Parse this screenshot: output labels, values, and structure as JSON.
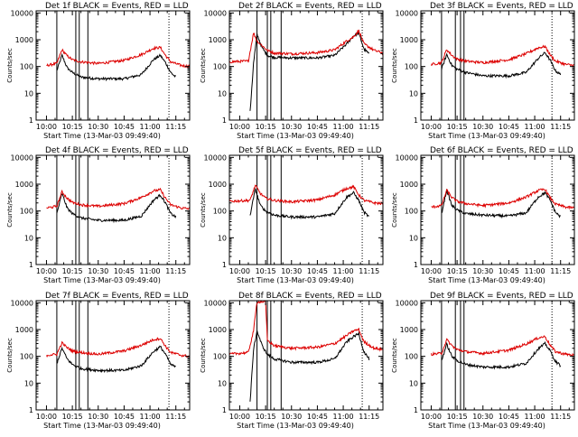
{
  "colors": {
    "events": "#000000",
    "lld": "#dd0000",
    "axis": "#000000"
  },
  "shared": {
    "ylabel": "Counts/sec",
    "xlabel": "Start Time (13-Mar-03 09:49:40)",
    "x_ticks": [
      "10:00",
      "10:15",
      "10:30",
      "10:45",
      "11:00",
      "11:15"
    ],
    "y_ticks": [
      "1",
      "10",
      "100",
      "1000",
      "10000"
    ],
    "xlim_minutes": [
      -6,
      83
    ],
    "ylim": [
      1,
      12000
    ],
    "yscale": "log"
  },
  "chart_data": [
    {
      "type": "line",
      "title": "Det 1f BLACK = Events, RED = LLD",
      "series": [
        {
          "x": [
            6,
            9,
            12,
            15,
            20,
            30,
            45,
            55,
            62,
            66,
            69,
            72,
            75
          ],
          "values": [
            70,
            260,
            90,
            60,
            40,
            35,
            35,
            50,
            180,
            260,
            140,
            60,
            40
          ]
        },
        {
          "x": [
            0,
            6,
            9,
            12,
            15,
            20,
            30,
            45,
            55,
            62,
            66,
            69,
            72,
            78,
            83
          ],
          "values": [
            110,
            130,
            420,
            250,
            180,
            150,
            130,
            170,
            280,
            480,
            520,
            260,
            150,
            110,
            100
          ]
        }
      ],
      "markers_solid": [
        6,
        17,
        19,
        24
      ],
      "markers_dotted": [
        71
      ]
    },
    {
      "type": "line",
      "title": "Det 2f BLACK = Events, RED = LLD",
      "series": [
        {
          "x": [
            6,
            8,
            10,
            13,
            16,
            20,
            30,
            45,
            55,
            62,
            66,
            69,
            72,
            75
          ],
          "values": [
            2,
            130,
            1600,
            500,
            260,
            220,
            210,
            210,
            260,
            700,
            1400,
            1800,
            450,
            300
          ]
        },
        {
          "x": [
            -6,
            5,
            8,
            10,
            13,
            16,
            20,
            30,
            45,
            55,
            62,
            66,
            69,
            72,
            78,
            83
          ],
          "values": [
            150,
            160,
            1800,
            900,
            600,
            400,
            320,
            300,
            330,
            420,
            900,
            1300,
            2200,
            700,
            400,
            320
          ]
        }
      ],
      "markers_solid": [
        10,
        16,
        18,
        24
      ],
      "markers_dotted": [
        71
      ]
    },
    {
      "type": "line",
      "title": "Det 3f BLACK = Events, RED = LLD",
      "series": [
        {
          "x": [
            6,
            9,
            12,
            15,
            20,
            30,
            45,
            55,
            62,
            66,
            69,
            72,
            75
          ],
          "values": [
            80,
            280,
            110,
            80,
            60,
            45,
            45,
            60,
            200,
            330,
            170,
            70,
            50
          ]
        },
        {
          "x": [
            0,
            6,
            9,
            12,
            15,
            20,
            30,
            45,
            55,
            62,
            66,
            69,
            72,
            78,
            83
          ],
          "values": [
            120,
            140,
            430,
            260,
            190,
            160,
            140,
            180,
            300,
            500,
            560,
            270,
            160,
            120,
            110
          ]
        }
      ],
      "markers_solid": [
        6,
        14,
        17,
        19
      ],
      "markers_dotted": [
        70
      ]
    },
    {
      "type": "line",
      "title": "Det 4f BLACK = Events, RED = LLD",
      "series": [
        {
          "x": [
            6,
            9,
            12,
            15,
            20,
            30,
            45,
            55,
            62,
            66,
            69,
            72,
            75
          ],
          "values": [
            80,
            450,
            130,
            80,
            55,
            45,
            45,
            65,
            250,
            400,
            200,
            80,
            60
          ]
        },
        {
          "x": [
            0,
            6,
            9,
            12,
            15,
            20,
            30,
            45,
            55,
            62,
            66,
            69,
            72,
            78,
            83
          ],
          "values": [
            130,
            150,
            520,
            300,
            210,
            170,
            150,
            190,
            320,
            560,
            620,
            300,
            170,
            130,
            120
          ]
        }
      ],
      "markers_solid": [
        6,
        17,
        19,
        24
      ],
      "markers_dotted": [
        71
      ]
    },
    {
      "type": "line",
      "title": "Det 5f BLACK = Events, RED = LLD",
      "series": [
        {
          "x": [
            6,
            9,
            12,
            15,
            20,
            30,
            45,
            55,
            62,
            66,
            69,
            72,
            75
          ],
          "values": [
            70,
            650,
            160,
            100,
            70,
            60,
            60,
            80,
            330,
            480,
            250,
            90,
            60
          ]
        },
        {
          "x": [
            -6,
            6,
            9,
            12,
            15,
            20,
            30,
            45,
            55,
            62,
            66,
            69,
            72,
            78,
            83
          ],
          "values": [
            230,
            250,
            900,
            450,
            300,
            250,
            220,
            260,
            400,
            700,
            800,
            400,
            250,
            200,
            190
          ]
        }
      ],
      "markers_solid": [
        10,
        16,
        18,
        24
      ],
      "markers_dotted": [
        71
      ]
    },
    {
      "type": "line",
      "title": "Det 6f BLACK = Events, RED = LLD",
      "series": [
        {
          "x": [
            6,
            9,
            12,
            15,
            20,
            30,
            45,
            55,
            62,
            66,
            69,
            72,
            75
          ],
          "values": [
            80,
            600,
            160,
            110,
            80,
            70,
            65,
            85,
            330,
            480,
            250,
            90,
            60
          ]
        },
        {
          "x": [
            0,
            6,
            9,
            12,
            15,
            20,
            30,
            45,
            55,
            62,
            66,
            69,
            72,
            78,
            83
          ],
          "values": [
            140,
            160,
            600,
            320,
            230,
            190,
            160,
            200,
            330,
            580,
            650,
            310,
            180,
            140,
            130
          ]
        }
      ],
      "markers_solid": [
        6,
        14,
        17,
        19
      ],
      "markers_dotted": [
        70
      ]
    },
    {
      "type": "line",
      "title": "Det 7f BLACK = Events, RED = LLD",
      "series": [
        {
          "x": [
            6,
            9,
            12,
            15,
            20,
            30,
            45,
            55,
            62,
            66,
            69,
            72,
            75
          ],
          "values": [
            55,
            200,
            80,
            50,
            35,
            30,
            30,
            45,
            150,
            230,
            120,
            50,
            40
          ]
        },
        {
          "x": [
            0,
            6,
            9,
            12,
            15,
            20,
            30,
            45,
            55,
            62,
            66,
            69,
            72,
            78,
            83
          ],
          "values": [
            110,
            120,
            320,
            210,
            160,
            140,
            120,
            160,
            260,
            420,
            470,
            240,
            140,
            110,
            100
          ]
        }
      ],
      "markers_solid": [
        6,
        17,
        19,
        24
      ],
      "markers_dotted": [
        71
      ]
    },
    {
      "type": "line",
      "title": "Det 8f BLACK = Events, RED = LLD",
      "series": [
        {
          "x": [
            6,
            8,
            10,
            13,
            16,
            20,
            30,
            45,
            55,
            62,
            66,
            69,
            72,
            75
          ],
          "values": [
            2,
            180,
            900,
            250,
            120,
            80,
            60,
            60,
            80,
            350,
            550,
            700,
            150,
            80
          ]
        },
        {
          "x": [
            -6,
            5,
            8,
            10,
            11,
            15,
            16,
            20,
            30,
            45,
            55,
            62,
            66,
            69,
            72,
            78,
            83
          ],
          "values": [
            120,
            140,
            900,
            11000,
            11000,
            11000,
            400,
            250,
            200,
            220,
            300,
            600,
            900,
            1000,
            350,
            200,
            180
          ]
        }
      ],
      "markers_solid": [
        10,
        16,
        18,
        24
      ],
      "markers_dotted": [
        71
      ]
    },
    {
      "type": "line",
      "title": "Det 9f BLACK = Events, RED = LLD",
      "series": [
        {
          "x": [
            6,
            9,
            12,
            15,
            20,
            30,
            45,
            55,
            62,
            66,
            69,
            72,
            75
          ],
          "values": [
            70,
            280,
            100,
            70,
            50,
            40,
            40,
            55,
            190,
            300,
            160,
            65,
            45
          ]
        },
        {
          "x": [
            0,
            6,
            9,
            12,
            15,
            20,
            30,
            45,
            55,
            62,
            66,
            69,
            72,
            78,
            83
          ],
          "values": [
            120,
            130,
            420,
            250,
            180,
            150,
            130,
            170,
            290,
            490,
            550,
            260,
            150,
            120,
            110
          ]
        }
      ],
      "markers_solid": [
        6,
        14,
        17,
        19
      ],
      "markers_dotted": [
        70
      ]
    }
  ]
}
